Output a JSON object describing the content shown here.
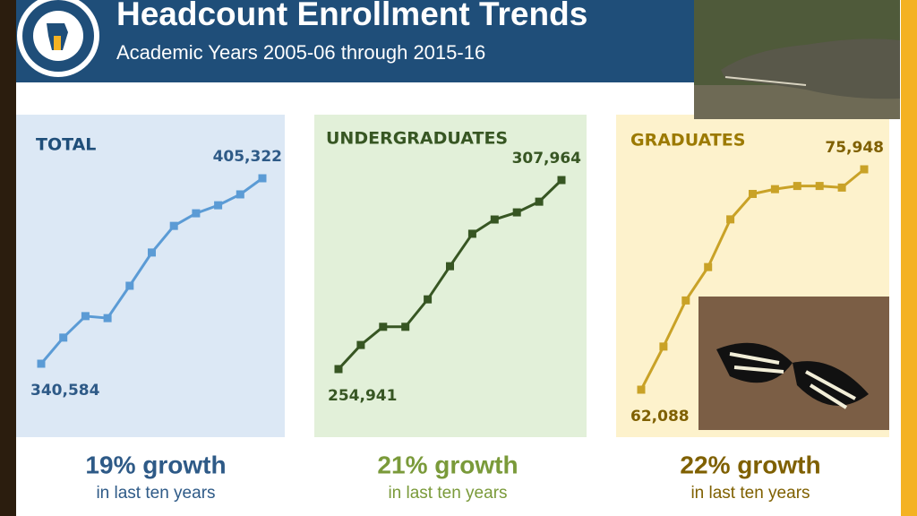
{
  "header": {
    "title": "Headcount Enrollment Trends",
    "subtitle": "Academic Years 2005-06 through 2015-16"
  },
  "chart_data": [
    {
      "type": "line",
      "title": "TOTAL",
      "color": "#5b9bd5",
      "values": [
        340584,
        349700,
        357200,
        356500,
        367800,
        379400,
        388700,
        393100,
        395900,
        399700,
        405322
      ],
      "value_labels": [
        "340,584",
        null,
        null,
        null,
        null,
        null,
        null,
        null,
        null,
        null,
        "405,322"
      ],
      "growth": "19% growth",
      "growth_note": "in last ten years"
    },
    {
      "type": "line",
      "title": "UNDERGRADUATES",
      "color": "#375623",
      "values": [
        254941,
        261700,
        266800,
        266800,
        274500,
        283800,
        292900,
        296900,
        298900,
        301900,
        307964
      ],
      "value_labels": [
        "254,941",
        null,
        null,
        null,
        null,
        null,
        null,
        null,
        null,
        null,
        "307,964"
      ],
      "growth": "21% growth",
      "growth_note": "in last ten years"
    },
    {
      "type": "line",
      "title": "GRADUATES",
      "color": "#c9a227",
      "values": [
        62088,
        64800,
        67700,
        69800,
        72800,
        74400,
        74700,
        74900,
        74900,
        74800,
        75948
      ],
      "value_labels": [
        "62,088",
        null,
        null,
        null,
        null,
        null,
        null,
        null,
        null,
        null,
        "75,948"
      ],
      "growth": "22% growth",
      "growth_note": "in last ten years"
    }
  ]
}
